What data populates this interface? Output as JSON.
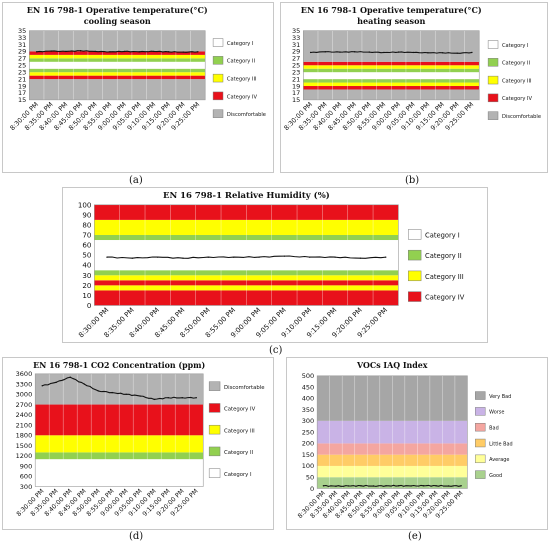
{
  "captions": [
    "(a)",
    "(b)",
    "(c)",
    "(d)",
    "(e)"
  ],
  "chart_data": [
    {
      "id": "a",
      "type": "line",
      "title": "EN 16 798-1 Operative temperature(°C)",
      "subtitle": "cooling season",
      "xlabel": "",
      "ylabel": "",
      "ylim": [
        15,
        35
      ],
      "yticks": [
        15,
        17,
        19,
        21,
        23,
        25,
        27,
        29,
        31,
        33,
        35
      ],
      "categories": [
        "8:30:00 PM",
        "8:35:00 PM",
        "8:40:00 PM",
        "8:45:00 PM",
        "8:50:00 PM",
        "8:55:00 PM",
        "9:00:00 PM",
        "9:05:00 PM",
        "9:10:00 PM",
        "9:15:00 PM",
        "9:20:00 PM",
        "9:25:00 PM"
      ],
      "bands": [
        {
          "from": 15,
          "to": 21,
          "name": "Discomfortable",
          "color": "#b3b3b3"
        },
        {
          "from": 21,
          "to": 22,
          "name": "Category IV",
          "color": "#e8111b"
        },
        {
          "from": 22,
          "to": 23,
          "name": "Category III",
          "color": "#ffff00"
        },
        {
          "from": 23,
          "to": 24,
          "name": "Category II",
          "color": "#92d050"
        },
        {
          "from": 24,
          "to": 26,
          "name": "Category I",
          "color": "#ffffff"
        },
        {
          "from": 26,
          "to": 27,
          "name": "Category II",
          "color": "#92d050"
        },
        {
          "from": 27,
          "to": 28,
          "name": "Category III",
          "color": "#ffff00"
        },
        {
          "from": 28,
          "to": 29,
          "name": "Category IV",
          "color": "#e8111b"
        },
        {
          "from": 29,
          "to": 35,
          "name": "Discomfortable",
          "color": "#b3b3b3"
        }
      ],
      "legend": [
        {
          "label": "Category I",
          "color": "#ffffff"
        },
        {
          "label": "Category II",
          "color": "#92d050"
        },
        {
          "label": "Category III",
          "color": "#ffff00"
        },
        {
          "label": "Category IV",
          "color": "#e8111b"
        },
        {
          "label": "Discomfortable",
          "color": "#b3b3b3"
        }
      ],
      "legend_position": "right",
      "series": [
        {
          "values": [
            28.9,
            29.1,
            29.0,
            29.2,
            29.0,
            28.9,
            29.0,
            28.9,
            29.0,
            28.9,
            28.8,
            28.9
          ]
        }
      ],
      "grid": true
    },
    {
      "id": "b",
      "type": "line",
      "title": "EN 16 798-1 Operative temperature(°C)",
      "subtitle": "heating season",
      "xlabel": "",
      "ylabel": "",
      "ylim": [
        15,
        35
      ],
      "yticks": [
        15,
        17,
        19,
        21,
        23,
        25,
        27,
        29,
        31,
        33,
        35
      ],
      "categories": [
        "8:30:00 PM",
        "8:35:00 PM",
        "8:40:00 PM",
        "8:45:00 PM",
        "8:50:00 PM",
        "8:55:00 PM",
        "9:00:00 PM",
        "9:05:00 PM",
        "9:10:00 PM",
        "9:15:00 PM",
        "9:20:00 PM",
        "9:25:00 PM"
      ],
      "bands": [
        {
          "from": 15,
          "to": 18,
          "name": "Discomfortable",
          "color": "#b3b3b3"
        },
        {
          "from": 18,
          "to": 19,
          "name": "Category IV",
          "color": "#e8111b"
        },
        {
          "from": 19,
          "to": 20,
          "name": "Category III",
          "color": "#ffff00"
        },
        {
          "from": 20,
          "to": 21,
          "name": "Category II",
          "color": "#92d050"
        },
        {
          "from": 21,
          "to": 23,
          "name": "Category I",
          "color": "#ffffff"
        },
        {
          "from": 23,
          "to": 24,
          "name": "Category II",
          "color": "#92d050"
        },
        {
          "from": 24,
          "to": 25,
          "name": "Category III",
          "color": "#ffff00"
        },
        {
          "from": 25,
          "to": 26,
          "name": "Category IV",
          "color": "#e8111b"
        },
        {
          "from": 26,
          "to": 35,
          "name": "Discomfortable",
          "color": "#b3b3b3"
        }
      ],
      "legend": [
        {
          "label": "Category I",
          "color": "#ffffff"
        },
        {
          "label": "Category II",
          "color": "#92d050"
        },
        {
          "label": "Category III",
          "color": "#ffff00"
        },
        {
          "label": "Category IV",
          "color": "#e8111b"
        },
        {
          "label": "Discomfortable",
          "color": "#b3b3b3"
        }
      ],
      "legend_position": "right",
      "series": [
        {
          "values": [
            28.7,
            28.9,
            28.8,
            28.9,
            28.8,
            28.7,
            28.8,
            28.7,
            28.6,
            28.6,
            28.5,
            28.7
          ]
        }
      ],
      "grid": true
    },
    {
      "id": "c",
      "type": "line",
      "title": "EN 16 798-1 Relative Humidity (%)",
      "subtitle": "",
      "xlabel": "",
      "ylabel": "",
      "ylim": [
        0,
        100
      ],
      "yticks": [
        0,
        10,
        20,
        30,
        40,
        50,
        60,
        70,
        80,
        90,
        100
      ],
      "categories": [
        "8:30:00 PM",
        "8:35:00 PM",
        "8:40:00 PM",
        "8:45:00 PM",
        "8:50:00 PM",
        "8:55:00 PM",
        "9:00:00 PM",
        "9:05:00 PM",
        "9:10:00 PM",
        "9:15:00 PM",
        "9:20:00 PM",
        "9:25:00 PM"
      ],
      "bands": [
        {
          "from": 0,
          "to": 15,
          "name": "Category IV",
          "color": "#e8111b"
        },
        {
          "from": 15,
          "to": 20,
          "name": "Category III",
          "color": "#ffff00"
        },
        {
          "from": 20,
          "to": 25,
          "name": "Category IV",
          "color": "#e8111b"
        },
        {
          "from": 25,
          "to": 30,
          "name": "Category III",
          "color": "#ffff00"
        },
        {
          "from": 30,
          "to": 35,
          "name": "Category II",
          "color": "#92d050"
        },
        {
          "from": 35,
          "to": 65,
          "name": "Category I",
          "color": "#ffffff"
        },
        {
          "from": 65,
          "to": 70,
          "name": "Category II",
          "color": "#92d050"
        },
        {
          "from": 70,
          "to": 85,
          "name": "Category III",
          "color": "#ffff00"
        },
        {
          "from": 85,
          "to": 100,
          "name": "Category IV",
          "color": "#e8111b"
        }
      ],
      "legend": [
        {
          "label": "Category I",
          "color": "#ffffff"
        },
        {
          "label": "Category II",
          "color": "#92d050"
        },
        {
          "label": "Category III",
          "color": "#ffff00"
        },
        {
          "label": "Category IV",
          "color": "#e8111b"
        }
      ],
      "legend_position": "right",
      "series": [
        {
          "values": [
            48,
            47,
            48,
            47,
            48,
            48,
            48,
            49,
            48,
            48,
            47,
            48
          ]
        }
      ],
      "grid": true
    },
    {
      "id": "d",
      "type": "line",
      "title": "EN 16 798-1 CO2 Concentration (ppm)",
      "subtitle": "",
      "xlabel": "",
      "ylabel": "",
      "ylim": [
        300,
        3600
      ],
      "yticks": [
        300,
        600,
        900,
        1200,
        1500,
        1800,
        2100,
        2400,
        2700,
        3000,
        3300,
        3600
      ],
      "categories": [
        "8:30:00 PM",
        "8:35:00 PM",
        "8:40:00 PM",
        "8:45:00 PM",
        "8:50:00 PM",
        "8:55:00 PM",
        "9:00:00 PM",
        "9:05:00 PM",
        "9:10:00 PM",
        "9:15:00 PM",
        "9:20:00 PM",
        "9:25:00 PM"
      ],
      "bands": [
        {
          "from": 300,
          "to": 1100,
          "name": "Category I",
          "color": "#ffffff"
        },
        {
          "from": 1100,
          "to": 1300,
          "name": "Category II",
          "color": "#92d050"
        },
        {
          "from": 1300,
          "to": 1800,
          "name": "Category III",
          "color": "#ffff00"
        },
        {
          "from": 1800,
          "to": 2700,
          "name": "Category IV",
          "color": "#e8111b"
        },
        {
          "from": 2700,
          "to": 3600,
          "name": "Discomfortable",
          "color": "#b3b3b3"
        }
      ],
      "legend": [
        {
          "label": "Discomfortable",
          "color": "#b3b3b3"
        },
        {
          "label": "Category IV",
          "color": "#e8111b"
        },
        {
          "label": "Category III",
          "color": "#ffff00"
        },
        {
          "label": "Category II",
          "color": "#92d050"
        },
        {
          "label": "Category I",
          "color": "#ffffff"
        }
      ],
      "legend_position": "right",
      "series": [
        {
          "values": [
            3250,
            3350,
            3500,
            3300,
            3100,
            3050,
            3000,
            2950,
            2850,
            2900,
            2900,
            2900
          ]
        }
      ],
      "grid": true
    },
    {
      "id": "e",
      "type": "line",
      "title": "VOCs IAQ Index",
      "subtitle": "",
      "xlabel": "",
      "ylabel": "",
      "ylim": [
        0,
        500
      ],
      "yticks": [
        0,
        50,
        100,
        150,
        200,
        250,
        300,
        350,
        400,
        450,
        500
      ],
      "categories": [
        "8:30:00 PM",
        "8:35:00 PM",
        "8:40:00 PM",
        "8:45:00 PM",
        "8:50:00 PM",
        "8:55:00 PM",
        "9:00:00 PM",
        "9:05:00 PM",
        "9:10:00 PM",
        "9:15:00 PM",
        "9:20:00 PM",
        "9:25:00 PM"
      ],
      "bands": [
        {
          "from": 0,
          "to": 50,
          "name": "Good",
          "color": "#a9d18e"
        },
        {
          "from": 50,
          "to": 100,
          "name": "Average",
          "color": "#ffff99"
        },
        {
          "from": 100,
          "to": 150,
          "name": "Little Bad",
          "color": "#ffcc66"
        },
        {
          "from": 150,
          "to": 200,
          "name": "Bad",
          "color": "#f4a6a0"
        },
        {
          "from": 200,
          "to": 300,
          "name": "Worse",
          "color": "#c9b3e6"
        },
        {
          "from": 300,
          "to": 500,
          "name": "Very Bad",
          "color": "#a6a6a6"
        }
      ],
      "legend": [
        {
          "label": "Very Bad",
          "color": "#a6a6a6"
        },
        {
          "label": "Worse",
          "color": "#c9b3e6"
        },
        {
          "label": "Bad",
          "color": "#f4a6a0"
        },
        {
          "label": "Little Bad",
          "color": "#ffcc66"
        },
        {
          "label": "Average",
          "color": "#ffff99"
        },
        {
          "label": "Good",
          "color": "#a9d18e"
        }
      ],
      "legend_position": "right",
      "series": [
        {
          "values": [
            12,
            10,
            11,
            12,
            11,
            12,
            12,
            11,
            12,
            12,
            11,
            12
          ]
        }
      ],
      "grid": true
    }
  ]
}
